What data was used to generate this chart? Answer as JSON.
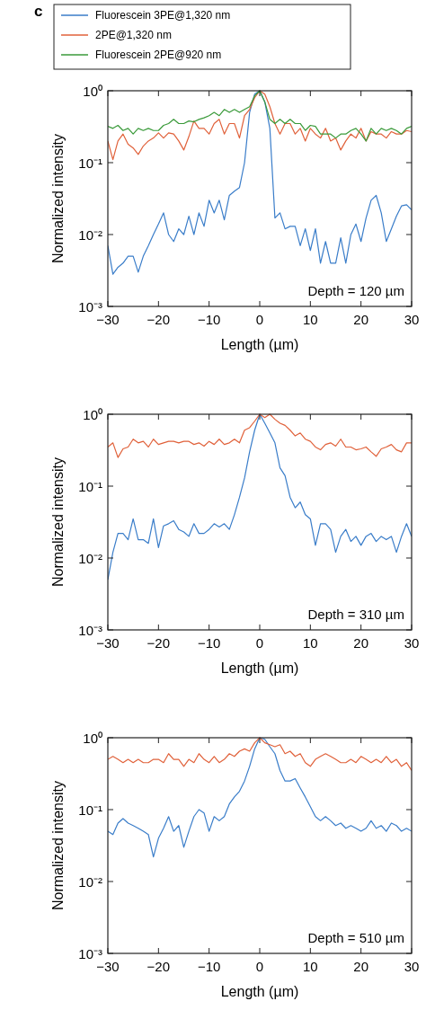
{
  "chart_data": [
    {
      "type": "line",
      "xlabel": "Length (µm)",
      "ylabel": "Normalized intensity",
      "log": "y",
      "legend": "top",
      "annotations": [
        "c",
        "Depth = 120 µm"
      ],
      "xlim": [
        -30,
        30
      ],
      "xticks": [
        {
          "value": -30,
          "label": "−30"
        },
        {
          "value": -20,
          "label": "−20"
        },
        {
          "value": -10,
          "label": "−10"
        },
        0,
        10,
        20,
        30
      ],
      "ylim": [
        0.001,
        1
      ],
      "yticks": [
        {
          "value": 0.001,
          "label": "10⁻³"
        },
        {
          "value": 0.01,
          "label": "10⁻²"
        },
        {
          "value": 0.1,
          "label": "10⁻¹"
        },
        {
          "value": 1,
          "label": "10⁰"
        }
      ],
      "x": [
        -30,
        -29,
        -28,
        -27,
        -26,
        -25,
        -24,
        -23,
        -22,
        -21,
        -20,
        -19,
        -18,
        -17,
        -16,
        -15,
        -14,
        -13,
        -12,
        -11,
        -10,
        -9,
        -8,
        -7,
        -6,
        -5,
        -4,
        -3,
        -2,
        -1,
        0,
        1,
        2,
        3,
        4,
        5,
        6,
        7,
        8,
        9,
        10,
        11,
        12,
        13,
        14,
        15,
        16,
        17,
        18,
        19,
        20,
        21,
        22,
        23,
        24,
        25,
        26,
        27,
        28,
        29,
        30
      ],
      "series": [
        {
          "name": "Fluorescein 3PE@1,320 nm",
          "color": "#3a7dc9",
          "values": [
            0.007,
            0.0028,
            0.0035,
            0.004,
            0.005,
            0.005,
            0.003,
            0.005,
            0.007,
            0.01,
            0.014,
            0.02,
            0.01,
            0.008,
            0.012,
            0.01,
            0.018,
            0.01,
            0.02,
            0.013,
            0.03,
            0.02,
            0.03,
            0.016,
            0.035,
            0.04,
            0.045,
            0.1,
            0.5,
            0.9,
            1,
            0.7,
            0.3,
            0.017,
            0.02,
            0.012,
            0.013,
            0.013,
            0.007,
            0.012,
            0.006,
            0.012,
            0.004,
            0.008,
            0.004,
            0.004,
            0.009,
            0.004,
            0.01,
            0.014,
            0.008,
            0.017,
            0.03,
            0.035,
            0.02,
            0.008,
            0.012,
            0.018,
            0.025,
            0.026,
            0.022
          ]
        },
        {
          "name": "2PE@1,320 nm",
          "color": "#e0613a",
          "values": [
            0.2,
            0.11,
            0.2,
            0.25,
            0.18,
            0.16,
            0.13,
            0.17,
            0.2,
            0.22,
            0.26,
            0.22,
            0.26,
            0.25,
            0.2,
            0.15,
            0.23,
            0.38,
            0.3,
            0.3,
            0.25,
            0.35,
            0.4,
            0.25,
            0.35,
            0.35,
            0.22,
            0.45,
            0.55,
            0.8,
            1,
            0.9,
            0.6,
            0.35,
            0.25,
            0.35,
            0.35,
            0.25,
            0.3,
            0.2,
            0.3,
            0.25,
            0.22,
            0.3,
            0.2,
            0.22,
            0.15,
            0.2,
            0.25,
            0.22,
            0.3,
            0.2,
            0.27,
            0.25,
            0.25,
            0.22,
            0.27,
            0.25,
            0.25,
            0.28,
            0.27
          ]
        },
        {
          "name": "Fluorescein 2PE@920 nm",
          "color": "#3a9a3a",
          "values": [
            0.32,
            0.3,
            0.33,
            0.28,
            0.3,
            0.25,
            0.3,
            0.28,
            0.3,
            0.28,
            0.28,
            0.33,
            0.35,
            0.4,
            0.35,
            0.35,
            0.38,
            0.37,
            0.4,
            0.42,
            0.45,
            0.5,
            0.45,
            0.55,
            0.5,
            0.55,
            0.5,
            0.55,
            0.6,
            0.85,
            1,
            0.7,
            0.4,
            0.35,
            0.4,
            0.35,
            0.4,
            0.35,
            0.35,
            0.28,
            0.33,
            0.32,
            0.25,
            0.25,
            0.25,
            0.22,
            0.25,
            0.25,
            0.28,
            0.3,
            0.25,
            0.2,
            0.3,
            0.25,
            0.3,
            0.28,
            0.3,
            0.28,
            0.25,
            0.3,
            0.32
          ]
        }
      ]
    },
    {
      "type": "line",
      "xlabel": "Length (µm)",
      "ylabel": "Normalized intensity",
      "log": "y",
      "annotations": [
        "Depth = 310 µm"
      ],
      "xlim": [
        -30,
        30
      ],
      "xticks": [
        {
          "value": -30,
          "label": "−30"
        },
        {
          "value": -20,
          "label": "−20"
        },
        {
          "value": -10,
          "label": "−10"
        },
        0,
        10,
        20,
        30
      ],
      "ylim": [
        0.001,
        1
      ],
      "yticks": [
        {
          "value": 0.001,
          "label": "10⁻³"
        },
        {
          "value": 0.01,
          "label": "10⁻²"
        },
        {
          "value": 0.1,
          "label": "10⁻¹"
        },
        {
          "value": 1,
          "label": "10⁰"
        }
      ],
      "x": [
        -30,
        -29,
        -28,
        -27,
        -26,
        -25,
        -24,
        -23,
        -22,
        -21,
        -20,
        -19,
        -18,
        -17,
        -16,
        -15,
        -14,
        -13,
        -12,
        -11,
        -10,
        -9,
        -8,
        -7,
        -6,
        -5,
        -4,
        -3,
        -2,
        -1,
        0,
        1,
        2,
        3,
        4,
        5,
        6,
        7,
        8,
        9,
        10,
        11,
        12,
        13,
        14,
        15,
        16,
        17,
        18,
        19,
        20,
        21,
        22,
        23,
        24,
        25,
        26,
        27,
        28,
        29,
        30
      ],
      "series": [
        {
          "color": "#3a7dc9",
          "values": [
            0.005,
            0.012,
            0.022,
            0.022,
            0.018,
            0.035,
            0.018,
            0.018,
            0.016,
            0.035,
            0.014,
            0.028,
            0.03,
            0.033,
            0.025,
            0.023,
            0.02,
            0.03,
            0.022,
            0.022,
            0.025,
            0.03,
            0.027,
            0.03,
            0.025,
            0.04,
            0.07,
            0.13,
            0.3,
            0.6,
            1,
            0.75,
            0.55,
            0.4,
            0.18,
            0.14,
            0.07,
            0.05,
            0.06,
            0.04,
            0.035,
            0.015,
            0.03,
            0.03,
            0.025,
            0.012,
            0.02,
            0.025,
            0.017,
            0.02,
            0.015,
            0.02,
            0.022,
            0.017,
            0.02,
            0.018,
            0.02,
            0.012,
            0.02,
            0.03,
            0.02
          ]
        },
        {
          "color": "#e0613a",
          "values": [
            0.35,
            0.4,
            0.25,
            0.33,
            0.35,
            0.45,
            0.4,
            0.42,
            0.35,
            0.45,
            0.38,
            0.4,
            0.42,
            0.42,
            0.4,
            0.42,
            0.42,
            0.38,
            0.4,
            0.36,
            0.42,
            0.38,
            0.45,
            0.38,
            0.4,
            0.45,
            0.4,
            0.6,
            0.65,
            0.8,
            1,
            0.9,
            1,
            0.85,
            0.75,
            0.7,
            0.6,
            0.5,
            0.55,
            0.45,
            0.42,
            0.35,
            0.32,
            0.38,
            0.4,
            0.36,
            0.45,
            0.35,
            0.35,
            0.32,
            0.33,
            0.35,
            0.3,
            0.26,
            0.33,
            0.35,
            0.38,
            0.32,
            0.3,
            0.4,
            0.4
          ]
        }
      ]
    },
    {
      "type": "line",
      "xlabel": "Length (µm)",
      "ylabel": "Normalized intensity",
      "log": "y",
      "annotations": [
        "Depth = 510 µm"
      ],
      "xlim": [
        -30,
        30
      ],
      "xticks": [
        {
          "value": -30,
          "label": "−30"
        },
        {
          "value": -20,
          "label": "−20"
        },
        {
          "value": -10,
          "label": "−10"
        },
        0,
        10,
        20,
        30
      ],
      "ylim": [
        0.001,
        1
      ],
      "yticks": [
        {
          "value": 0.001,
          "label": "10⁻³"
        },
        {
          "value": 0.01,
          "label": "10⁻²"
        },
        {
          "value": 0.1,
          "label": "10⁻¹"
        },
        {
          "value": 1,
          "label": "10⁰"
        }
      ],
      "x": [
        -30,
        -29,
        -28,
        -27,
        -26,
        -25,
        -24,
        -23,
        -22,
        -21,
        -20,
        -19,
        -18,
        -17,
        -16,
        -15,
        -14,
        -13,
        -12,
        -11,
        -10,
        -9,
        -8,
        -7,
        -6,
        -5,
        -4,
        -3,
        -2,
        -1,
        0,
        1,
        2,
        3,
        4,
        5,
        6,
        7,
        8,
        9,
        10,
        11,
        12,
        13,
        14,
        15,
        16,
        17,
        18,
        19,
        20,
        21,
        22,
        23,
        24,
        25,
        26,
        27,
        28,
        29,
        30
      ],
      "series": [
        {
          "color": "#3a7dc9",
          "values": [
            0.05,
            0.045,
            0.065,
            0.075,
            0.065,
            0.06,
            0.055,
            0.05,
            0.045,
            0.022,
            0.04,
            0.055,
            0.08,
            0.05,
            0.06,
            0.03,
            0.05,
            0.08,
            0.1,
            0.09,
            0.05,
            0.08,
            0.07,
            0.08,
            0.12,
            0.15,
            0.18,
            0.25,
            0.4,
            0.7,
            1,
            0.95,
            0.75,
            0.6,
            0.35,
            0.25,
            0.25,
            0.27,
            0.2,
            0.15,
            0.11,
            0.08,
            0.07,
            0.08,
            0.07,
            0.06,
            0.065,
            0.055,
            0.06,
            0.055,
            0.05,
            0.055,
            0.07,
            0.055,
            0.06,
            0.05,
            0.065,
            0.06,
            0.05,
            0.055,
            0.05
          ]
        },
        {
          "color": "#e0613a",
          "values": [
            0.5,
            0.55,
            0.5,
            0.45,
            0.5,
            0.45,
            0.5,
            0.45,
            0.45,
            0.5,
            0.5,
            0.45,
            0.6,
            0.5,
            0.5,
            0.4,
            0.5,
            0.45,
            0.6,
            0.5,
            0.45,
            0.55,
            0.45,
            0.5,
            0.6,
            0.55,
            0.65,
            0.7,
            0.65,
            0.85,
            1,
            0.85,
            0.8,
            0.75,
            0.8,
            0.6,
            0.65,
            0.55,
            0.6,
            0.45,
            0.4,
            0.5,
            0.55,
            0.6,
            0.55,
            0.5,
            0.45,
            0.45,
            0.5,
            0.45,
            0.55,
            0.5,
            0.45,
            0.5,
            0.45,
            0.55,
            0.45,
            0.5,
            0.4,
            0.45,
            0.35
          ]
        }
      ]
    }
  ]
}
